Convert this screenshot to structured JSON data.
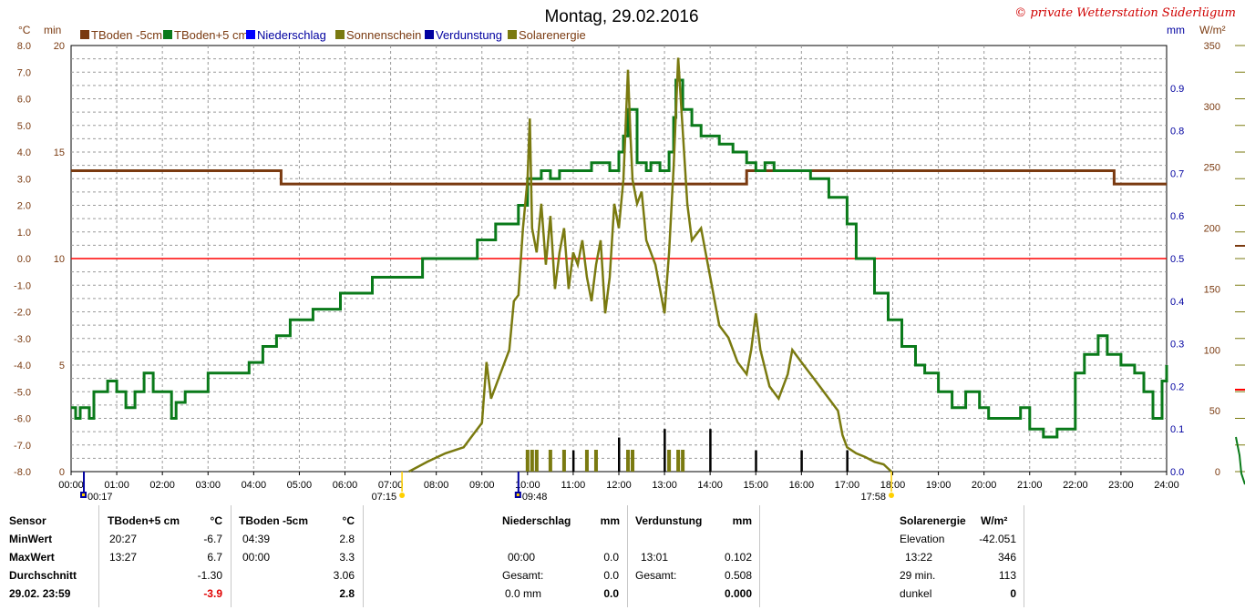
{
  "chart_data": {
    "type": "line",
    "title": "Montag, 29.02.2016",
    "copyright": "© private Wetterstation Süderlügum",
    "legend": [
      {
        "name": "TBoden -5cm",
        "color": "#7a3a10"
      },
      {
        "name": "TBoden+5 cm",
        "color": "#0a7a1a"
      },
      {
        "name": "Niederschlag",
        "color": "#0000ff"
      },
      {
        "name": "Sonnenschein",
        "color": "#7a7a10"
      },
      {
        "name": "Verdunstung",
        "color": "#0000a0"
      },
      {
        "name": "Solarenergie",
        "color": "#7a7a10"
      }
    ],
    "axis_left_temp": {
      "unit": "°C",
      "min": -8,
      "max": 8,
      "ticks": [
        "8.0",
        "7.0",
        "6.0",
        "5.0",
        "4.0",
        "3.0",
        "2.0",
        "1.0",
        "0.0",
        "-1.0",
        "-2.0",
        "-3.0",
        "-4.0",
        "-5.0",
        "-6.0",
        "-7.0",
        "-8.0"
      ]
    },
    "axis_left_min": {
      "unit": "min",
      "min": 0,
      "max": 20,
      "ticks": [
        "20",
        "15",
        "10",
        "5",
        "0"
      ]
    },
    "axis_right_mm": {
      "unit": "mm",
      "min": 0,
      "max": 1,
      "ticks": [
        "0.9",
        "0.8",
        "0.7",
        "0.6",
        "0.5",
        "0.4",
        "0.3",
        "0.2",
        "0.1",
        "0.0"
      ]
    },
    "axis_right_w": {
      "unit": "W/m²",
      "min": 0,
      "max": 350,
      "ticks": [
        "350",
        "300",
        "250",
        "200",
        "150",
        "100",
        "50",
        "0"
      ]
    },
    "x_ticks": [
      "00:00",
      "01:00",
      "02:00",
      "03:00",
      "04:00",
      "05:00",
      "06:00",
      "07:00",
      "08:00",
      "09:00",
      "10:00",
      "11:00",
      "12:00",
      "13:00",
      "14:00",
      "15:00",
      "16:00",
      "17:00",
      "18:00",
      "19:00",
      "20:00",
      "21:00",
      "22:00",
      "23:00",
      "24:00"
    ],
    "markers": [
      {
        "t": 0.28,
        "label": "00:17"
      },
      {
        "t": 7.25,
        "label": "07:15"
      },
      {
        "t": 9.8,
        "label": "09:48"
      },
      {
        "t": 17.97,
        "label": "17:58"
      }
    ],
    "zero_line_temp": 0,
    "series": [
      {
        "name": "TBoden -5cm",
        "axis": "temp",
        "color": "#7a3a10",
        "points": [
          [
            0,
            3.3
          ],
          [
            4.6,
            3.3
          ],
          [
            4.6,
            2.8
          ],
          [
            14.8,
            2.8
          ],
          [
            14.8,
            3.3
          ],
          [
            22.85,
            3.3
          ],
          [
            22.85,
            2.8
          ],
          [
            24,
            2.8
          ]
        ]
      },
      {
        "name": "TBoden+5 cm",
        "axis": "temp",
        "color": "#0a7a1a",
        "points": [
          [
            0,
            -5.6
          ],
          [
            0.1,
            -6
          ],
          [
            0.2,
            -5.6
          ],
          [
            0.4,
            -6
          ],
          [
            0.5,
            -5
          ],
          [
            0.7,
            -5
          ],
          [
            0.8,
            -4.6
          ],
          [
            1,
            -5
          ],
          [
            1.2,
            -5.6
          ],
          [
            1.4,
            -5
          ],
          [
            1.6,
            -4.3
          ],
          [
            1.8,
            -5
          ],
          [
            2.1,
            -5
          ],
          [
            2.2,
            -6
          ],
          [
            2.3,
            -5.4
          ],
          [
            2.5,
            -5
          ],
          [
            3,
            -4.3
          ],
          [
            3.6,
            -4.3
          ],
          [
            3.9,
            -3.9
          ],
          [
            4.2,
            -3.3
          ],
          [
            4.5,
            -2.9
          ],
          [
            4.8,
            -2.3
          ],
          [
            5.3,
            -1.9
          ],
          [
            5.9,
            -1.3
          ],
          [
            6.6,
            -0.7
          ],
          [
            7.7,
            0
          ],
          [
            8.9,
            0.7
          ],
          [
            9.3,
            1.3
          ],
          [
            9.8,
            2
          ],
          [
            10.0,
            3
          ],
          [
            10.3,
            3.3
          ],
          [
            10.5,
            3
          ],
          [
            10.7,
            3.3
          ],
          [
            11.2,
            3.3
          ],
          [
            11.4,
            3.6
          ],
          [
            11.8,
            3.3
          ],
          [
            12.0,
            4
          ],
          [
            12.1,
            4.6
          ],
          [
            12.2,
            5.6
          ],
          [
            12.4,
            3.6
          ],
          [
            12.6,
            3.3
          ],
          [
            12.7,
            3.6
          ],
          [
            12.9,
            3.3
          ],
          [
            13.1,
            4
          ],
          [
            13.2,
            5.3
          ],
          [
            13.25,
            6.7
          ],
          [
            13.4,
            5.6
          ],
          [
            13.6,
            5
          ],
          [
            13.8,
            4.6
          ],
          [
            14.2,
            4.3
          ],
          [
            14.5,
            4
          ],
          [
            14.8,
            3.6
          ],
          [
            15.0,
            3.3
          ],
          [
            15.2,
            3.6
          ],
          [
            15.4,
            3.3
          ],
          [
            15.9,
            3.3
          ],
          [
            16.2,
            3
          ],
          [
            16.6,
            2.3
          ],
          [
            17.0,
            1.3
          ],
          [
            17.2,
            0
          ],
          [
            17.6,
            -1.3
          ],
          [
            17.9,
            -2.3
          ],
          [
            18.2,
            -3.3
          ],
          [
            18.5,
            -4
          ],
          [
            18.7,
            -4.3
          ],
          [
            19.0,
            -5
          ],
          [
            19.3,
            -5.6
          ],
          [
            19.6,
            -5
          ],
          [
            19.9,
            -5.6
          ],
          [
            20.1,
            -6
          ],
          [
            20.5,
            -6
          ],
          [
            20.8,
            -5.6
          ],
          [
            21.0,
            -6.4
          ],
          [
            21.3,
            -6.7
          ],
          [
            21.6,
            -6.4
          ],
          [
            22.0,
            -4.3
          ],
          [
            22.2,
            -3.6
          ],
          [
            22.5,
            -2.9
          ],
          [
            22.7,
            -3.6
          ],
          [
            23.0,
            -4
          ],
          [
            23.3,
            -4.3
          ],
          [
            23.5,
            -5
          ],
          [
            23.7,
            -6
          ],
          [
            23.9,
            -4.6
          ],
          [
            24,
            -4
          ]
        ]
      },
      {
        "name": "Solarenergie",
        "axis": "watt",
        "color": "#7a7a10",
        "points": [
          [
            7.4,
            0
          ],
          [
            7.8,
            8
          ],
          [
            8.2,
            15
          ],
          [
            8.6,
            20
          ],
          [
            8.8,
            30
          ],
          [
            9.0,
            40
          ],
          [
            9.1,
            90
          ],
          [
            9.2,
            60
          ],
          [
            9.4,
            80
          ],
          [
            9.6,
            100
          ],
          [
            9.7,
            140
          ],
          [
            9.8,
            145
          ],
          [
            9.9,
            200
          ],
          [
            10.0,
            240
          ],
          [
            10.05,
            290
          ],
          [
            10.1,
            200
          ],
          [
            10.2,
            180
          ],
          [
            10.3,
            220
          ],
          [
            10.4,
            170
          ],
          [
            10.5,
            210
          ],
          [
            10.6,
            150
          ],
          [
            10.7,
            180
          ],
          [
            10.8,
            200
          ],
          [
            10.9,
            150
          ],
          [
            11.0,
            180
          ],
          [
            11.1,
            170
          ],
          [
            11.2,
            190
          ],
          [
            11.3,
            160
          ],
          [
            11.4,
            140
          ],
          [
            11.5,
            170
          ],
          [
            11.6,
            190
          ],
          [
            11.7,
            130
          ],
          [
            11.8,
            160
          ],
          [
            11.9,
            220
          ],
          [
            12.0,
            200
          ],
          [
            12.1,
            240
          ],
          [
            12.2,
            330
          ],
          [
            12.25,
            280
          ],
          [
            12.3,
            240
          ],
          [
            12.4,
            220
          ],
          [
            12.5,
            230
          ],
          [
            12.6,
            190
          ],
          [
            12.8,
            170
          ],
          [
            13.0,
            130
          ],
          [
            13.1,
            180
          ],
          [
            13.2,
            250
          ],
          [
            13.3,
            340
          ],
          [
            13.35,
            310
          ],
          [
            13.5,
            220
          ],
          [
            13.6,
            190
          ],
          [
            13.8,
            200
          ],
          [
            14.0,
            160
          ],
          [
            14.2,
            120
          ],
          [
            14.4,
            110
          ],
          [
            14.6,
            90
          ],
          [
            14.8,
            80
          ],
          [
            14.9,
            100
          ],
          [
            15.0,
            130
          ],
          [
            15.1,
            100
          ],
          [
            15.3,
            70
          ],
          [
            15.5,
            60
          ],
          [
            15.7,
            80
          ],
          [
            15.8,
            100
          ],
          [
            16.0,
            90
          ],
          [
            16.2,
            80
          ],
          [
            16.4,
            70
          ],
          [
            16.6,
            60
          ],
          [
            16.8,
            50
          ],
          [
            16.9,
            30
          ],
          [
            17.0,
            20
          ],
          [
            17.2,
            15
          ],
          [
            17.4,
            12
          ],
          [
            17.6,
            8
          ],
          [
            17.8,
            6
          ],
          [
            17.97,
            0
          ]
        ]
      },
      {
        "name": "Verdunstung",
        "axis": "mm",
        "color": "#000000",
        "type": "bars",
        "points": [
          [
            10,
            0.02
          ],
          [
            11,
            0.05
          ],
          [
            12,
            0.08
          ],
          [
            13,
            0.1
          ],
          [
            14,
            0.1
          ],
          [
            15,
            0.05
          ],
          [
            16,
            0.05
          ],
          [
            17,
            0.05
          ]
        ]
      },
      {
        "name": "Sonnenschein",
        "axis": "min",
        "color": "#7a7a10",
        "type": "bars",
        "points": [
          [
            10.0,
            1
          ],
          [
            10.1,
            1
          ],
          [
            10.2,
            1
          ],
          [
            10.5,
            1
          ],
          [
            10.8,
            1
          ],
          [
            11.3,
            1
          ],
          [
            11.5,
            1
          ],
          [
            12.2,
            1
          ],
          [
            12.3,
            1
          ],
          [
            13.1,
            1
          ],
          [
            13.3,
            1
          ],
          [
            13.4,
            1
          ]
        ]
      }
    ]
  },
  "stats": {
    "sensor_label": "Sensor",
    "minwert_label": "MinWert",
    "maxwert_label": "MaxWert",
    "durchschnitt_label": "Durchschnitt",
    "date": "29.02. 23:59",
    "t5": {
      "head": "TBoden+5 cm",
      "unit": "°C",
      "min_time": "20:27",
      "min": "-6.7",
      "max_time": "13:27",
      "max": "6.7",
      "avg": "-1.30",
      "cur": "-3.9"
    },
    "tm5": {
      "head": "TBoden -5cm",
      "unit": "°C",
      "min_time": "04:39",
      "min": "2.8",
      "max_time": "00:00",
      "max": "3.3",
      "avg": "3.06",
      "cur": "2.8"
    },
    "nied": {
      "head": "Niederschlag",
      "unit": "mm",
      "time": "00:00",
      "val": "0.0",
      "total_label": "Gesamt:",
      "total": "0.0",
      "mm_label": "0.0 mm",
      "mm_val": "0.0"
    },
    "verd": {
      "head": "Verdunstung",
      "unit": "mm",
      "time": "13:01",
      "val": "0.102",
      "total_label": "Gesamt:",
      "total": "0.508",
      "cur": "0.000"
    },
    "solar": {
      "head": "Solarenergie",
      "unit": "W/m²",
      "elev_label": "Elevation",
      "elev": "-42.051",
      "max_time": "13:22",
      "max": "346",
      "min_label": "29 min.",
      "min_val": "113",
      "dunkel_label": "dunkel",
      "dunkel_val": "0"
    }
  }
}
